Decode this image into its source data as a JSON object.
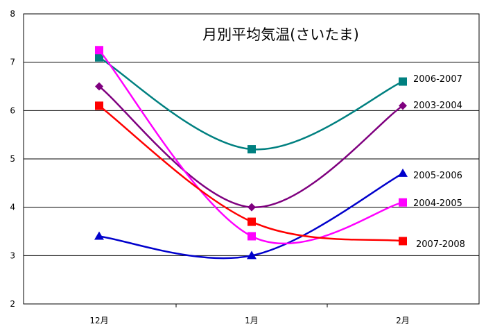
{
  "chart_data": {
    "type": "line",
    "title": "月別平均気温(さいたま)",
    "categories": [
      "12月",
      "1月",
      "2月"
    ],
    "ylim": [
      2,
      8
    ],
    "yticks": [
      2,
      3,
      4,
      5,
      6,
      7,
      8
    ],
    "grid": true,
    "legend": "inline-right",
    "series": [
      {
        "name": "2006-2007",
        "values": [
          7.1,
          5.2,
          6.6
        ],
        "color": "#008080",
        "marker": "square"
      },
      {
        "name": "2003-2004",
        "values": [
          6.5,
          4.0,
          6.1
        ],
        "color": "#7f007f",
        "marker": "diamond"
      },
      {
        "name": "2005-2006",
        "values": [
          3.4,
          3.0,
          4.7
        ],
        "color": "#0000cc",
        "marker": "triangle"
      },
      {
        "name": "2004-2005",
        "values": [
          7.25,
          3.4,
          4.1
        ],
        "color": "#ff00ff",
        "marker": "square"
      },
      {
        "name": "2007-2008",
        "values": [
          6.1,
          3.7,
          3.3
        ],
        "color": "#ff0000",
        "marker": "square"
      }
    ]
  }
}
